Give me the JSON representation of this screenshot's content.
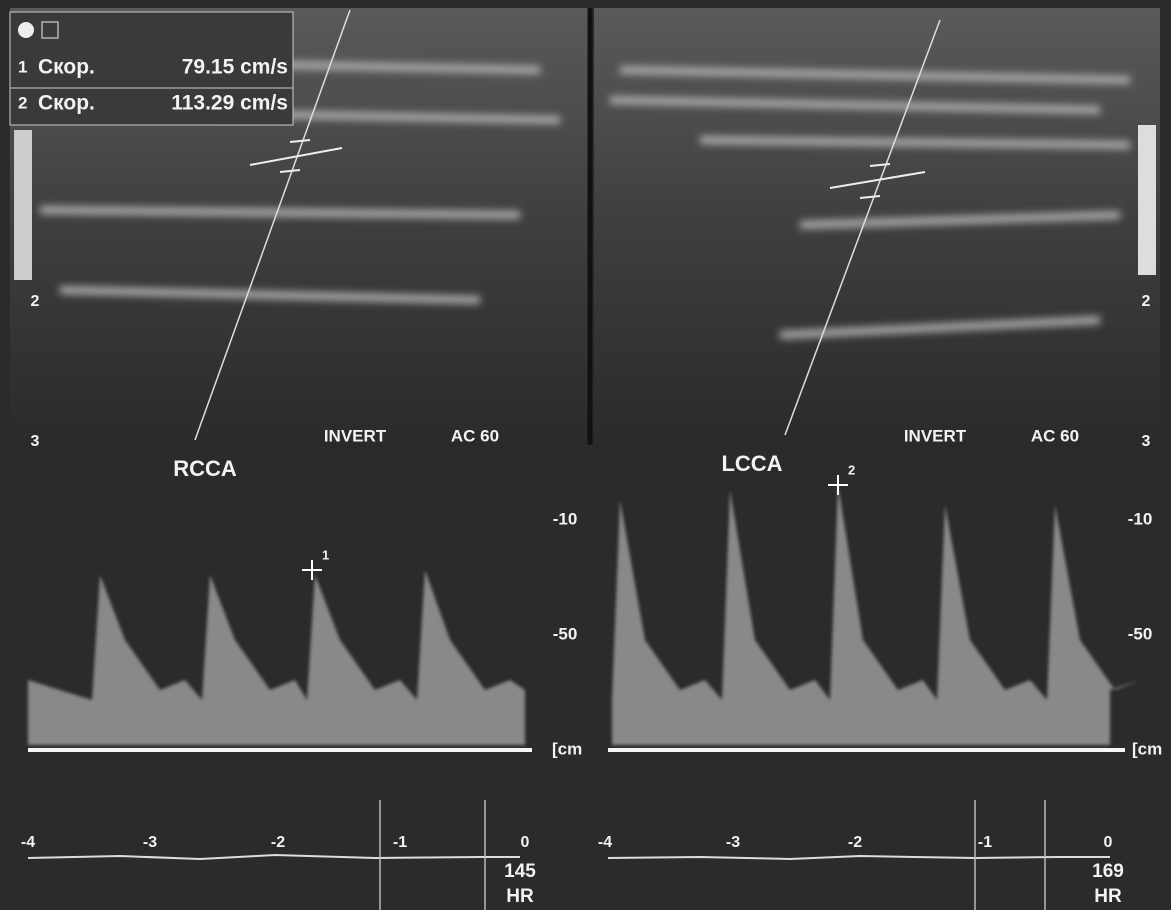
{
  "measurements": [
    {
      "index": "1",
      "label": "Скор.",
      "value": "79.15 cm/s"
    },
    {
      "index": "2",
      "label": "Скор.",
      "value": "113.29 cm/s"
    }
  ],
  "panels": [
    {
      "vessel": "RCCA",
      "mode": "INVERT",
      "filter": "AC 60",
      "depth_labels": [
        "2",
        "3"
      ],
      "velocity_labels": [
        "-10",
        "-50"
      ],
      "unit": "[cm",
      "time_labels": [
        "-4",
        "-3",
        "-2",
        "-1",
        "0"
      ],
      "heart_rate": "145",
      "hr_label": "HR",
      "marker": "1"
    },
    {
      "vessel": "LCCA",
      "mode": "INVERT",
      "filter": "AC 60",
      "depth_labels": [
        "2",
        "3"
      ],
      "velocity_labels": [
        "-10",
        "-50"
      ],
      "unit": "[cm",
      "time_labels": [
        "-4",
        "-3",
        "-2",
        "-1",
        "0"
      ],
      "heart_rate": "169",
      "hr_label": "HR",
      "marker": "2"
    }
  ]
}
